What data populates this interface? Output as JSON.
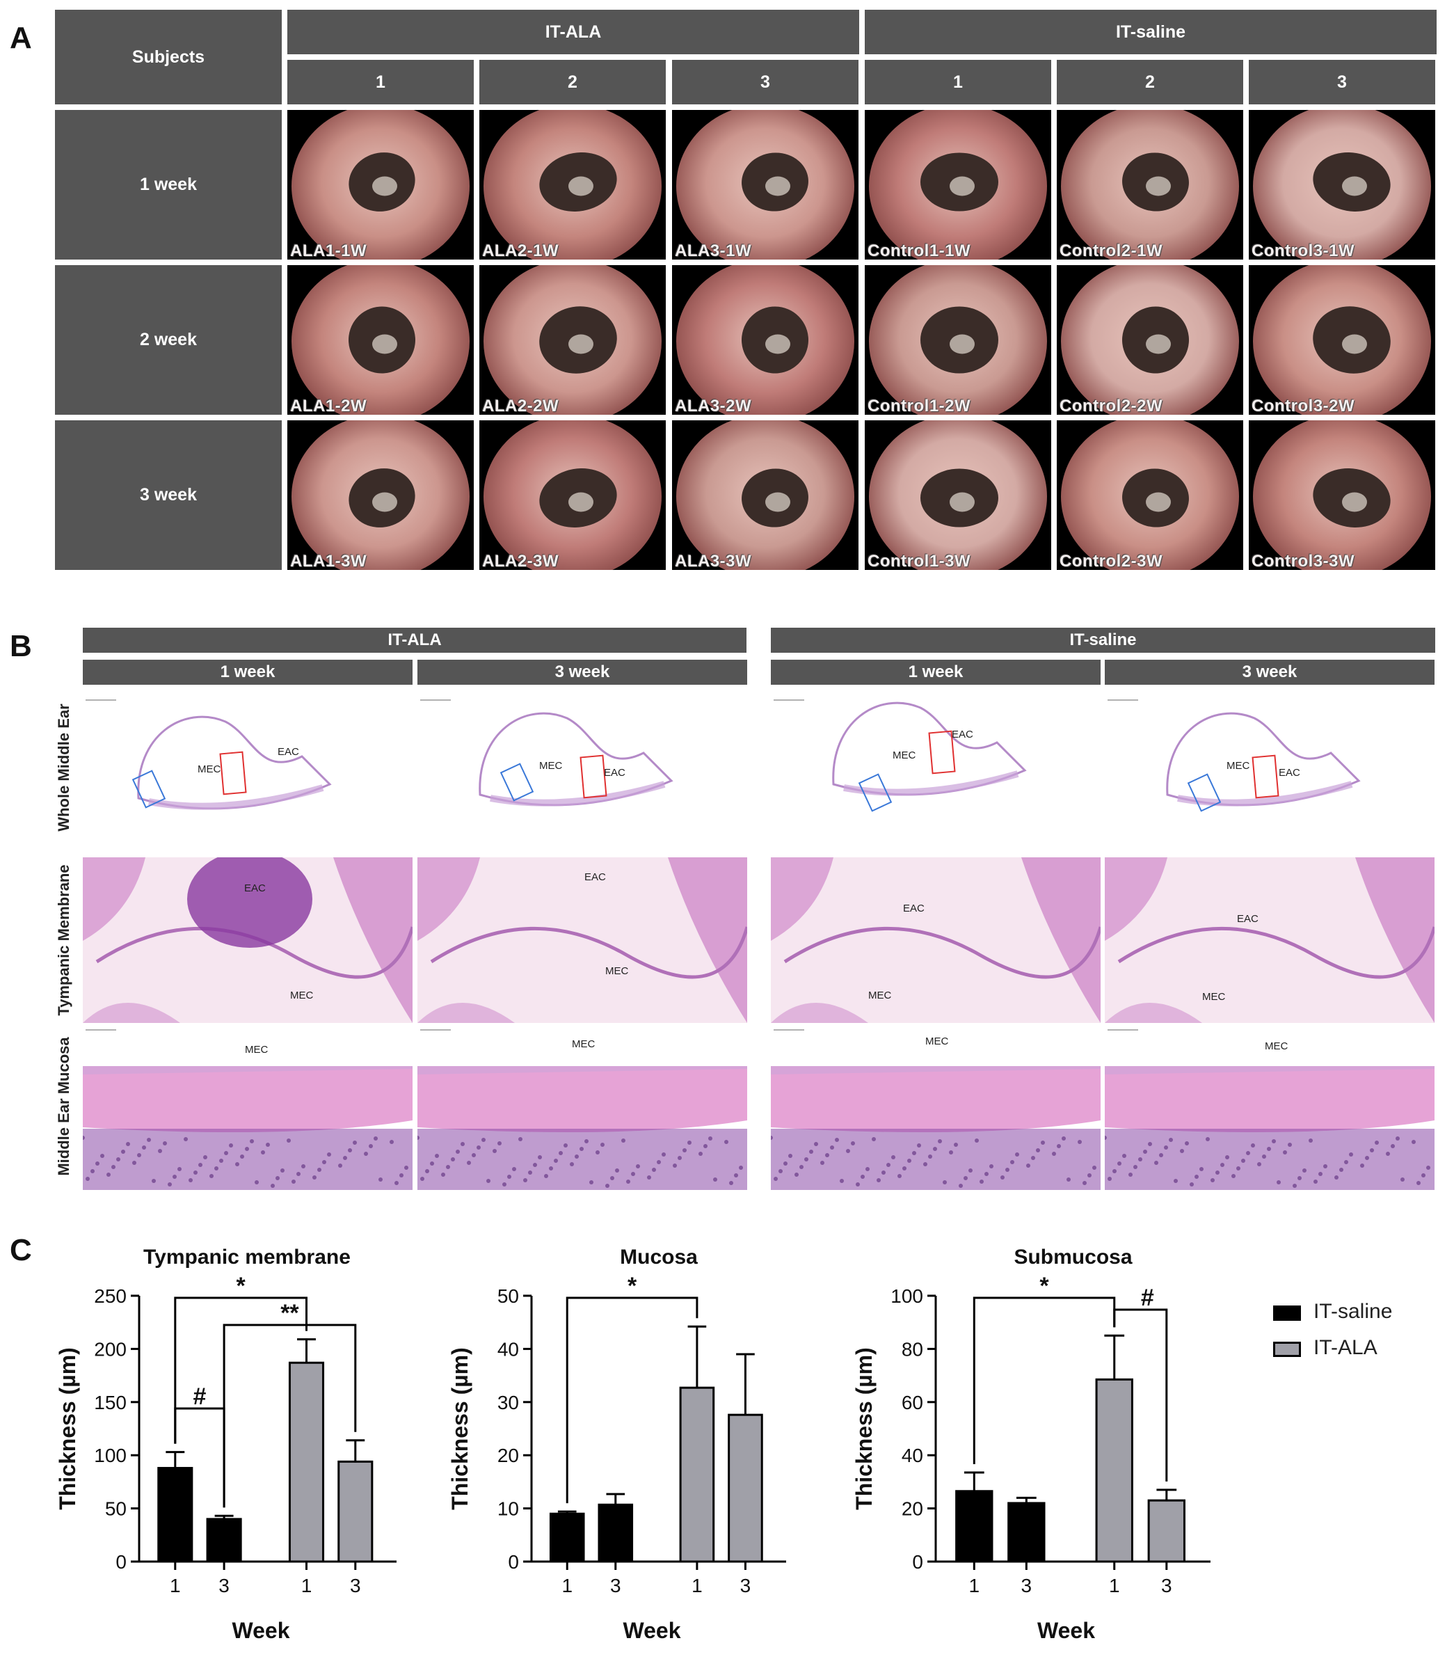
{
  "panelA": {
    "letter": "A",
    "subjects_label": "Subjects",
    "group_headers": [
      "IT-ALA",
      "IT-saline"
    ],
    "subject_numbers": [
      "1",
      "2",
      "3",
      "1",
      "2",
      "3"
    ],
    "row_labels": [
      "1 week",
      "2 week",
      "3 week"
    ],
    "image_labels": [
      [
        "ALA1-1W",
        "ALA2-1W",
        "ALA3-1W",
        "Control1-1W",
        "Control2-1W",
        "Control3-1W"
      ],
      [
        "ALA1-2W",
        "ALA2-2W",
        "ALA3-2W",
        "Control1-2W",
        "Control2-2W",
        "Control3-2W"
      ],
      [
        "ALA1-3W",
        "ALA2-3W",
        "ALA3-3W",
        "Control1-3W",
        "Control2-3W",
        "Control3-3W"
      ]
    ]
  },
  "panelB": {
    "letter": "B",
    "group_headers": [
      "IT-ALA",
      "IT-saline"
    ],
    "week_headers": [
      "1 week",
      "3 week",
      "1 week",
      "3 week"
    ],
    "row_labels": [
      "Whole Middle Ear",
      "Tympanic Membrane",
      "Middle Ear Mucosa"
    ],
    "annotations": {
      "mec": "MEC",
      "eac": "EAC"
    }
  },
  "panelC": {
    "letter": "C",
    "legend": [
      {
        "label": "IT-saline",
        "color": "#000000"
      },
      {
        "label": "IT-ALA",
        "color": "#a0a0a8"
      }
    ]
  },
  "chart_data": [
    {
      "type": "bar",
      "title": "Tympanic membrane",
      "xlabel": "Week",
      "ylabel": "Thickness (µm)",
      "categories": [
        "1",
        "3",
        "1",
        "3"
      ],
      "groups": [
        "IT-saline",
        "IT-saline",
        "IT-ALA",
        "IT-ALA"
      ],
      "values": [
        88,
        40,
        187,
        94
      ],
      "errors": [
        15,
        3,
        22,
        20
      ],
      "ylim": [
        0,
        250
      ],
      "yticks": [
        0,
        50,
        100,
        150,
        200,
        250
      ],
      "significance": [
        {
          "from": 0,
          "to": 2,
          "label": "*"
        },
        {
          "from": 1,
          "to": 3,
          "label": "**"
        },
        {
          "from": 0,
          "to": 1,
          "label": "#"
        }
      ]
    },
    {
      "type": "bar",
      "title": "Mucosa",
      "xlabel": "Week",
      "ylabel": "Thickness (µm)",
      "categories": [
        "1",
        "3",
        "1",
        "3"
      ],
      "groups": [
        "IT-saline",
        "IT-saline",
        "IT-ALA",
        "IT-ALA"
      ],
      "values": [
        9,
        10.7,
        32.7,
        27.6
      ],
      "errors": [
        0.4,
        2,
        11.5,
        11.4
      ],
      "ylim": [
        0,
        50
      ],
      "yticks": [
        0,
        10,
        20,
        30,
        40,
        50
      ],
      "significance": [
        {
          "from": 0,
          "to": 2,
          "label": "*"
        }
      ]
    },
    {
      "type": "bar",
      "title": "Submucosa",
      "xlabel": "Week",
      "ylabel": "Thickness (µm)",
      "categories": [
        "1",
        "3",
        "1",
        "3"
      ],
      "groups": [
        "IT-saline",
        "IT-saline",
        "IT-ALA",
        "IT-ALA"
      ],
      "values": [
        26.5,
        22,
        68.5,
        23
      ],
      "errors": [
        7,
        2,
        16.5,
        4
      ],
      "ylim": [
        0,
        100
      ],
      "yticks": [
        0,
        20,
        40,
        60,
        80,
        100
      ],
      "significance": [
        {
          "from": 0,
          "to": 2,
          "label": "*"
        },
        {
          "from": 2,
          "to": 3,
          "label": "#"
        }
      ]
    }
  ]
}
